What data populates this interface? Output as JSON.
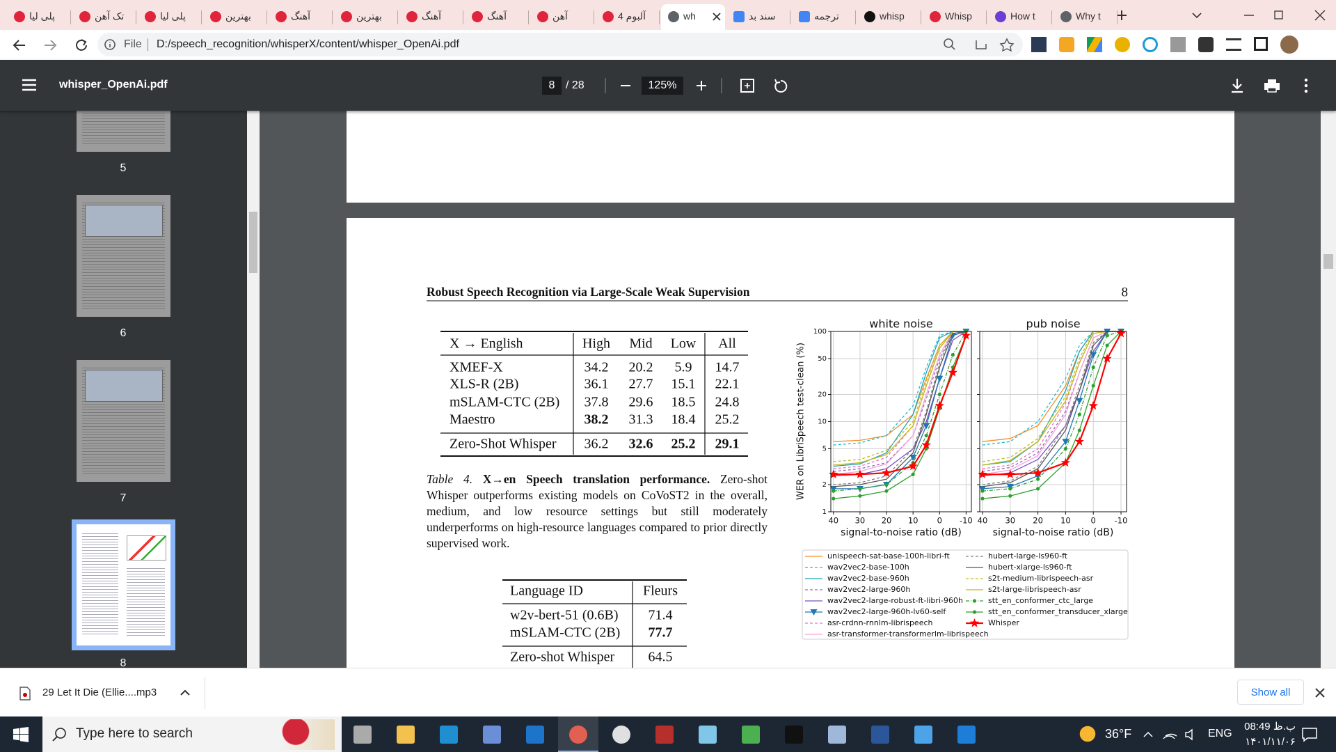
{
  "browser": {
    "tabs": [
      {
        "title": "پلی لیا"
      },
      {
        "title": "تک آهن"
      },
      {
        "title": "پلی لیا"
      },
      {
        "title": "بهترین"
      },
      {
        "title": "آهنگ"
      },
      {
        "title": "بهترین"
      },
      {
        "title": "آهنگ"
      },
      {
        "title": "آهنگ"
      },
      {
        "title": "آهن"
      },
      {
        "title": "آلبوم 4"
      },
      {
        "title": "wh",
        "active": true
      },
      {
        "title": "سند بد"
      },
      {
        "title": "ترجمه"
      },
      {
        "title": "whisp"
      },
      {
        "title": "Whisp"
      },
      {
        "title": "How t"
      },
      {
        "title": "Why t"
      }
    ],
    "address": {
      "scheme": "File",
      "url": "D:/speech_recognition/whisperX/content/whisper_OpenAi.pdf"
    }
  },
  "pdf_toolbar": {
    "file_name": "whisper_OpenAi.pdf",
    "page": "8",
    "page_count": "/ 28",
    "zoom": "125%"
  },
  "thumbnails": [
    {
      "label": "5"
    },
    {
      "label": "6"
    },
    {
      "label": "7"
    },
    {
      "label": "8",
      "selected": true
    }
  ],
  "page": {
    "running_title": "Robust Speech Recognition via Large-Scale Weak Supervision",
    "page_number": "8",
    "table4": {
      "header": [
        "X → English",
        "High",
        "Mid",
        "Low",
        "All"
      ],
      "rows": [
        [
          "XMEF-X",
          "34.2",
          "20.2",
          "5.9",
          "14.7"
        ],
        [
          "XLS-R (2B)",
          "36.1",
          "27.7",
          "15.1",
          "22.1"
        ],
        [
          "mSLAM-CTC (2B)",
          "37.8",
          "29.6",
          "18.5",
          "24.8"
        ],
        [
          "Maestro",
          {
            "text": "38.2",
            "bold": true
          },
          "31.3",
          "18.4",
          "25.2"
        ],
        [
          "Zero-Shot Whisper",
          "36.2",
          {
            "text": "32.6",
            "bold": true
          },
          {
            "text": "25.2",
            "bold": true
          },
          {
            "text": "29.1",
            "bold": true
          }
        ]
      ]
    },
    "caption4": {
      "label": "Table 4.",
      "title": "X→en Speech translation performance.",
      "text": "Zero-shot Whisper outperforms existing models on CoVoST2 in the overall, medium, and low resource settings but still moderately underperforms on high-resource languages compared to prior directly supervised work."
    },
    "table2": {
      "header": [
        "Language ID",
        "Fleurs"
      ],
      "rows": [
        [
          "w2v-bert-51 (0.6B)",
          "71.4"
        ],
        [
          "mSLAM-CTC (2B)",
          {
            "text": "77.7",
            "bold": true
          }
        ],
        [
          "Zero-shot Whisper",
          "64.5"
        ]
      ]
    },
    "figure": {
      "ylabel": "WER on LibriSpeech test-clean (%)",
      "x": [
        40,
        30,
        20,
        10,
        5,
        0,
        -5,
        -10
      ],
      "xlim": [
        41,
        -12
      ],
      "xticks": [
        40,
        30,
        20,
        10,
        0,
        -10
      ],
      "ylim": [
        1,
        100
      ],
      "yticks": [
        1,
        2,
        5,
        10,
        20,
        50,
        100
      ],
      "log_y": true,
      "grid": true,
      "legend": [
        {
          "name": "unispeech-sat-base-100h-libri-ft",
          "color": "#f28e2b",
          "dash": "none",
          "marker": "none"
        },
        {
          "name": "wav2vec2-base-100h",
          "color": "#17becf",
          "dash": "4 3",
          "marker": "none"
        },
        {
          "name": "wav2vec2-base-960h",
          "color": "#1fa3b8",
          "dash": "none",
          "marker": "none"
        },
        {
          "name": "wav2vec2-large-960h",
          "color": "#9467bd",
          "dash": "4 3",
          "marker": "none"
        },
        {
          "name": "wav2vec2-large-robust-ft-libri-960h",
          "color": "#7b4fbf",
          "dash": "none",
          "marker": "none"
        },
        {
          "name": "wav2vec2-large-960h-lv60-self",
          "color": "#1f77b4",
          "dash": "none",
          "marker": "triangle"
        },
        {
          "name": "asr-crdnn-rnnlm-librispeech",
          "color": "#e377c2",
          "dash": "4 3",
          "marker": "none"
        },
        {
          "name": "asr-transformer-transformerlm-librispeech",
          "color": "#f4a3d6",
          "dash": "none",
          "marker": "none"
        },
        {
          "name": "hubert-large-ls960-ft",
          "color": "#7f7f7f",
          "dash": "4 3",
          "marker": "none"
        },
        {
          "name": "hubert-xlarge-ls960-ft",
          "color": "#555555",
          "dash": "none",
          "marker": "none"
        },
        {
          "name": "s2t-medium-librispeech-asr",
          "color": "#bcbd22",
          "dash": "4 3",
          "marker": "none"
        },
        {
          "name": "s2t-large-librispeech-asr",
          "color": "#c5b51c",
          "dash": "none",
          "marker": "none"
        },
        {
          "name": "stt_en_conformer_ctc_large",
          "color": "#2ca02c",
          "dash": "5 2 1 2",
          "marker": "dot"
        },
        {
          "name": "stt_en_conformer_transducer_xlarge",
          "color": "#2ca02c",
          "dash": "none",
          "marker": "dot"
        },
        {
          "name": "Whisper",
          "color": "#ff0000",
          "dash": "none",
          "marker": "star"
        }
      ],
      "panels": [
        {
          "title": "white noise",
          "xlabel": "signal-to-noise ratio (dB)",
          "values": [
            [
              6,
              6.2,
              7,
              12,
              30,
              70,
              100,
              100
            ],
            [
              5.5,
              5.8,
              7,
              15,
              40,
              90,
              100,
              100
            ],
            [
              3.2,
              3.4,
              4.5,
              12,
              35,
              85,
              100,
              100
            ],
            [
              2.8,
              3,
              3.5,
              7,
              18,
              50,
              100,
              100
            ],
            [
              2.5,
              2.6,
              3,
              5,
              10,
              30,
              80,
              100
            ],
            [
              1.8,
              1.8,
              2,
              4,
              9,
              30,
              90,
              100
            ],
            [
              3,
              3.2,
              4,
              9,
              25,
              65,
              100,
              100
            ],
            [
              2.6,
              2.8,
              3.4,
              7,
              20,
              55,
              100,
              100
            ],
            [
              2,
              2.1,
              2.5,
              5,
              13,
              45,
              100,
              100
            ],
            [
              1.9,
              2,
              2.3,
              4.5,
              12,
              40,
              95,
              100
            ],
            [
              3.6,
              3.8,
              4.8,
              10,
              28,
              70,
              100,
              100
            ],
            [
              3.3,
              3.5,
              4.3,
              9,
              25,
              65,
              100,
              100
            ],
            [
              1.7,
              1.8,
              2,
              3.5,
              7,
              20,
              55,
              100
            ],
            [
              1.4,
              1.5,
              1.7,
              2.6,
              5,
              14,
              40,
              90
            ],
            [
              2.6,
              2.6,
              2.7,
              3.2,
              5.5,
              15,
              35,
              90
            ]
          ]
        },
        {
          "title": "pub noise",
          "xlabel": "signal-to-noise ratio (dB)",
          "values": [
            [
              6,
              6.5,
              9,
              25,
              60,
              100,
              100,
              100
            ],
            [
              5.5,
              6,
              10,
              30,
              70,
              100,
              100,
              100
            ],
            [
              3.3,
              3.6,
              6,
              22,
              60,
              100,
              100,
              100
            ],
            [
              2.8,
              3.1,
              4.5,
              13,
              35,
              85,
              100,
              100
            ],
            [
              2.5,
              2.7,
              3.8,
              9,
              22,
              60,
              100,
              100
            ],
            [
              1.8,
              1.9,
              2.5,
              6,
              17,
              55,
              100,
              100
            ],
            [
              3,
              3.3,
              5,
              16,
              45,
              95,
              100,
              100
            ],
            [
              2.6,
              2.9,
              4.2,
              12,
              35,
              85,
              100,
              100
            ],
            [
              2,
              2.2,
              3.2,
              9,
              25,
              75,
              100,
              100
            ],
            [
              1.9,
              2.1,
              3,
              8,
              22,
              70,
              100,
              100
            ],
            [
              3.6,
              4,
              6.5,
              19,
              50,
              100,
              100,
              100
            ],
            [
              3.3,
              3.7,
              6,
              17,
              45,
              95,
              100,
              100
            ],
            [
              1.7,
              1.8,
              2.3,
              5,
              12,
              40,
              90,
              100
            ],
            [
              1.4,
              1.5,
              1.8,
              3.5,
              8,
              25,
              70,
              100
            ],
            [
              2.6,
              2.6,
              2.7,
              3.5,
              6,
              15,
              50,
              95
            ]
          ]
        }
      ]
    }
  },
  "downloads": {
    "file": "29 Let It Die (Ellie....mp3",
    "show_all": "Show all"
  },
  "taskbar": {
    "search": "Type here to search",
    "weather": "36°F",
    "language": "ENG",
    "time": "08:49 ب.ظ",
    "date": "۱۴۰۱/۱۱/۰۶"
  }
}
